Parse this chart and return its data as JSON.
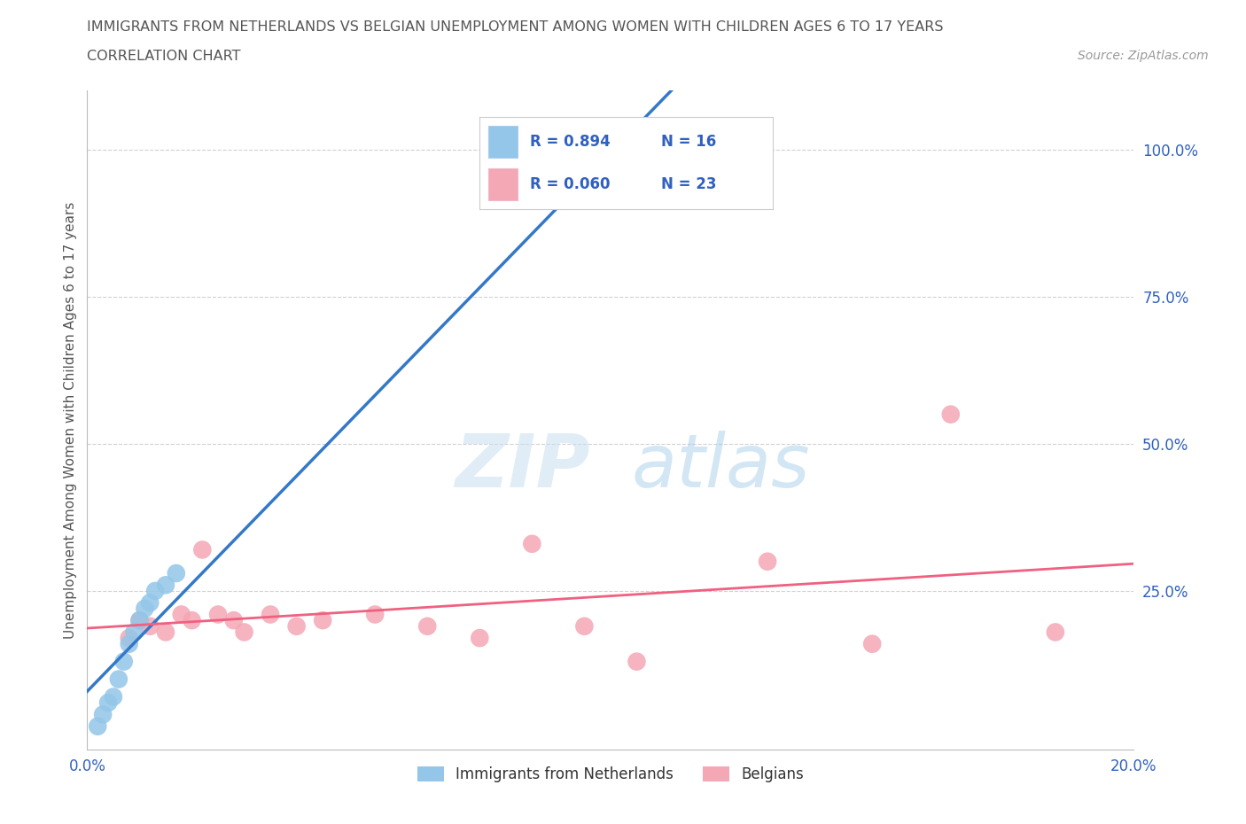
{
  "title_line1": "IMMIGRANTS FROM NETHERLANDS VS BELGIAN UNEMPLOYMENT AMONG WOMEN WITH CHILDREN AGES 6 TO 17 YEARS",
  "title_line2": "CORRELATION CHART",
  "source_text": "Source: ZipAtlas.com",
  "ylabel": "Unemployment Among Women with Children Ages 6 to 17 years",
  "xlim": [
    0.0,
    0.2
  ],
  "ylim": [
    -0.02,
    1.1
  ],
  "ytick_values": [
    0.25,
    0.5,
    0.75,
    1.0
  ],
  "ytick_labels": [
    "25.0%",
    "50.0%",
    "75.0%",
    "100.0%"
  ],
  "xtick_values": [
    0.0,
    0.05,
    0.1,
    0.15,
    0.2
  ],
  "xtick_labels": [
    "0.0%",
    "",
    "",
    "",
    "20.0%"
  ],
  "netherlands_x": [
    0.002,
    0.003,
    0.004,
    0.005,
    0.006,
    0.007,
    0.008,
    0.009,
    0.01,
    0.011,
    0.012,
    0.013,
    0.015,
    0.017,
    0.08,
    0.115
  ],
  "netherlands_y": [
    0.02,
    0.04,
    0.06,
    0.07,
    0.1,
    0.13,
    0.16,
    0.18,
    0.2,
    0.22,
    0.23,
    0.25,
    0.26,
    0.28,
    0.97,
    1.0
  ],
  "belgians_x": [
    0.008,
    0.01,
    0.012,
    0.015,
    0.018,
    0.02,
    0.022,
    0.025,
    0.028,
    0.03,
    0.035,
    0.04,
    0.045,
    0.055,
    0.065,
    0.075,
    0.085,
    0.095,
    0.105,
    0.13,
    0.15,
    0.165,
    0.185
  ],
  "belgians_y": [
    0.17,
    0.2,
    0.19,
    0.18,
    0.21,
    0.2,
    0.32,
    0.21,
    0.2,
    0.18,
    0.21,
    0.19,
    0.2,
    0.21,
    0.19,
    0.17,
    0.33,
    0.19,
    0.13,
    0.3,
    0.16,
    0.55,
    0.18
  ],
  "nl_line_x0": 0.0,
  "nl_line_y0": 0.0,
  "nl_line_x1": 0.115,
  "nl_line_y1": 1.05,
  "be_line_x0": 0.0,
  "be_line_y0": 0.175,
  "be_line_x1": 0.2,
  "be_line_y1": 0.21,
  "netherlands_color": "#93C6E8",
  "belgians_color": "#F4A7B4",
  "netherlands_line_color": "#3478C8",
  "belgians_line_color": "#F06080",
  "netherlands_R": 0.894,
  "netherlands_N": 16,
  "belgians_R": 0.06,
  "belgians_N": 23,
  "legend_label_netherlands": "Immigrants from Netherlands",
  "legend_label_belgians": "Belgians",
  "legend_text_color": "#333333",
  "RN_color": "#3060C0",
  "watermark_ZIP": "ZIP",
  "watermark_atlas": "atlas",
  "background_color": "#FFFFFF",
  "grid_color": "#CCCCCC",
  "title_color": "#555555",
  "axis_label_color": "#555555",
  "tick_color": "#3060C0"
}
